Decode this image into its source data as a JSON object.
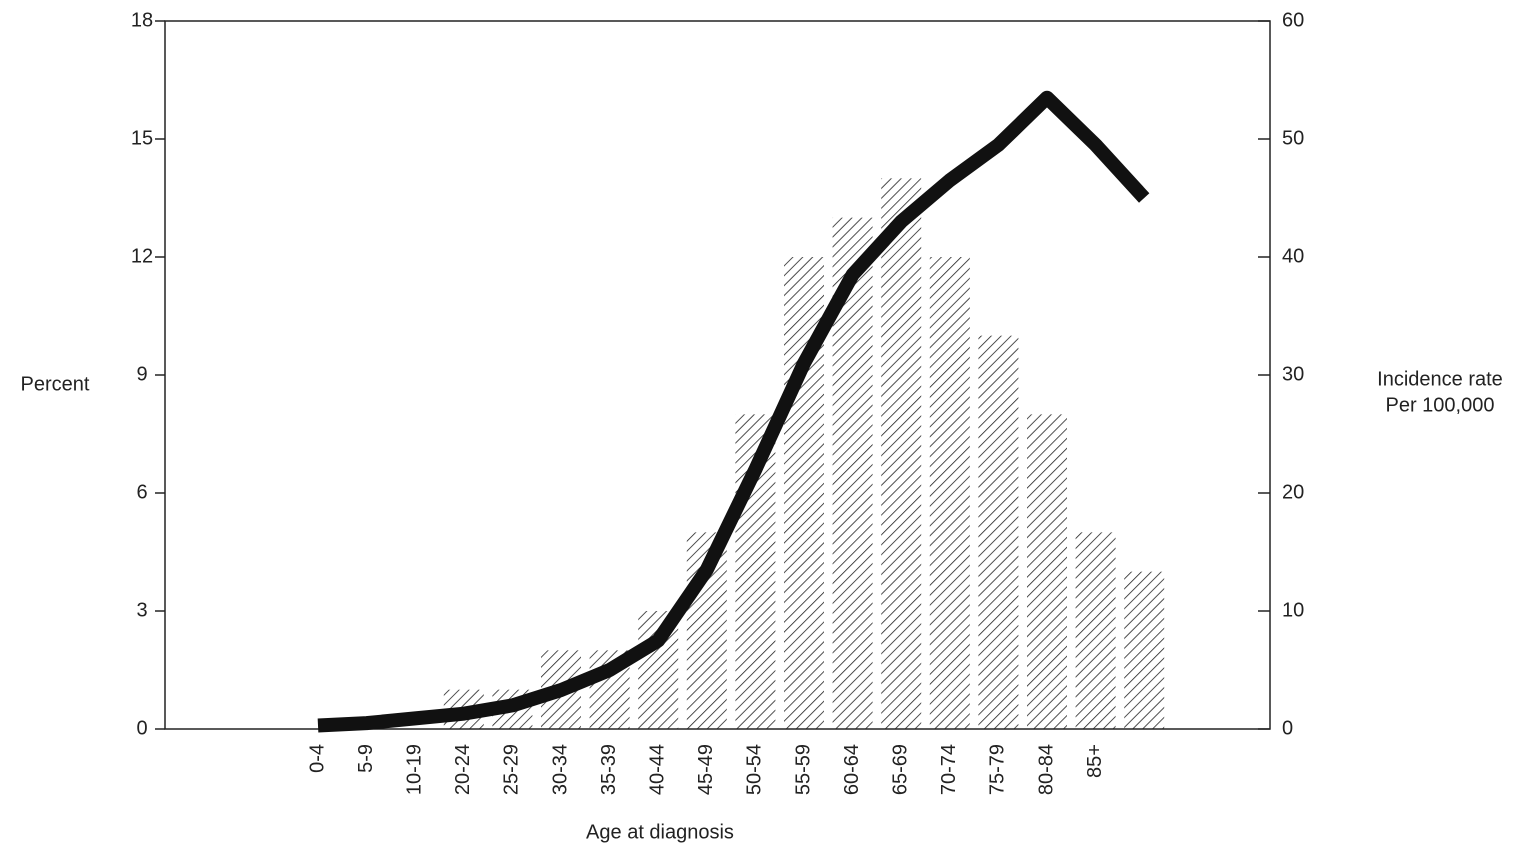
{
  "chart_data": {
    "type": "bar_line",
    "xlabel": "Age at diagnosis",
    "ylabel": "Percent",
    "y2label": [
      "Incidence rate",
      "Per 100,000"
    ],
    "categories": [
      "0-4",
      "5-9",
      "10-19",
      "20-24",
      "25-29",
      "30-34",
      "35-39",
      "40-44",
      "45-49",
      "50-54",
      "55-59",
      "60-64",
      "65-69",
      "70-74",
      "75-79",
      "80-84",
      "85+",
      null
    ],
    "series": [
      {
        "type": "bar",
        "color": "#222222",
        "values": [
          0,
          0,
          0,
          1,
          1,
          2,
          2,
          3,
          5,
          8,
          12,
          13,
          14,
          12,
          10,
          8,
          5,
          4
        ]
      },
      {
        "type": "line",
        "axis": "y2",
        "color": "#111111",
        "values": [
          0.3,
          0.5,
          0.9,
          1.3,
          2,
          3.3,
          5,
          7.5,
          13.5,
          22,
          31,
          38.5,
          43,
          46.5,
          49.5,
          53.5,
          49.5,
          45
        ]
      }
    ],
    "ylim": [
      0,
      18
    ],
    "yticks": [
      0,
      3,
      6,
      9,
      12,
      15,
      18
    ],
    "y2lim": [
      0,
      60
    ],
    "y2ticks": [
      0,
      10,
      20,
      30,
      40,
      50,
      60
    ],
    "grid": false
  }
}
